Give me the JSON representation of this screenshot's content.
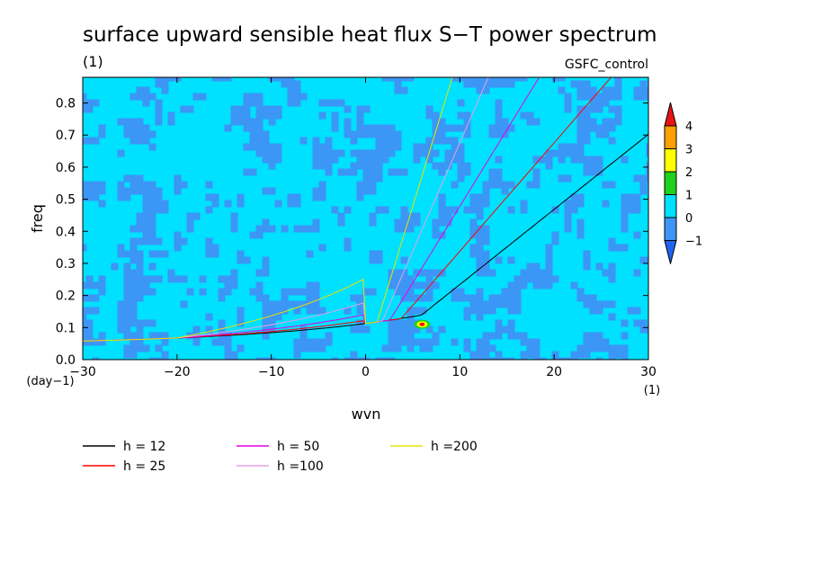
{
  "chart_data": {
    "type": "heatmap",
    "title": "surface upward sensible heat flux S−T power spectrum",
    "subtitle_left": "(1)",
    "subtitle_right": "GSFC_control",
    "xlabel": "wvn",
    "ylabel": "freq",
    "x_unit": "(1)",
    "y_unit": "(day−1)",
    "xlim": [
      -30,
      30
    ],
    "ylim": [
      0,
      0.88
    ],
    "x_ticks": [
      -30,
      -20,
      -10,
      0,
      10,
      20,
      30
    ],
    "x_tick_labels": [
      "−30",
      "−20",
      "−10",
      "0",
      "10",
      "20",
      "30"
    ],
    "y_ticks": [
      0.0,
      0.1,
      0.2,
      0.3,
      0.4,
      0.5,
      0.6,
      0.7,
      0.8
    ],
    "y_tick_labels": [
      "0.0",
      "0.1",
      "0.2",
      "0.3",
      "0.4",
      "0.5",
      "0.6",
      "0.7",
      "0.8"
    ],
    "colorbar": {
      "levels": [
        -1,
        0,
        1,
        2,
        3,
        4
      ],
      "level_labels": [
        "−1",
        "0",
        "1",
        "2",
        "3",
        "4"
      ],
      "colors": [
        "#1e64f0",
        "#3c96f5",
        "#00e0ff",
        "#1ed21e",
        "#ffff00",
        "#ffa000",
        "#e61414"
      ]
    },
    "field_description_colors": {
      "background": "#00e0ff",
      "patches": "#3c96f5"
    },
    "hotspot": {
      "x": 6,
      "y": 0.11
    },
    "dispersion_curves": [
      {
        "name": "h = 12",
        "color": "#000000",
        "equivalent_depth_m": 12
      },
      {
        "name": "h = 25",
        "color": "#ff0000",
        "equivalent_depth_m": 25
      },
      {
        "name": "h = 50",
        "color": "#e600e6",
        "equivalent_depth_m": 50
      },
      {
        "name": "h =100",
        "color": "#e6a0e6",
        "equivalent_depth_m": 100
      },
      {
        "name": "h =200",
        "color": "#e6e600",
        "equivalent_depth_m": 200
      }
    ]
  }
}
